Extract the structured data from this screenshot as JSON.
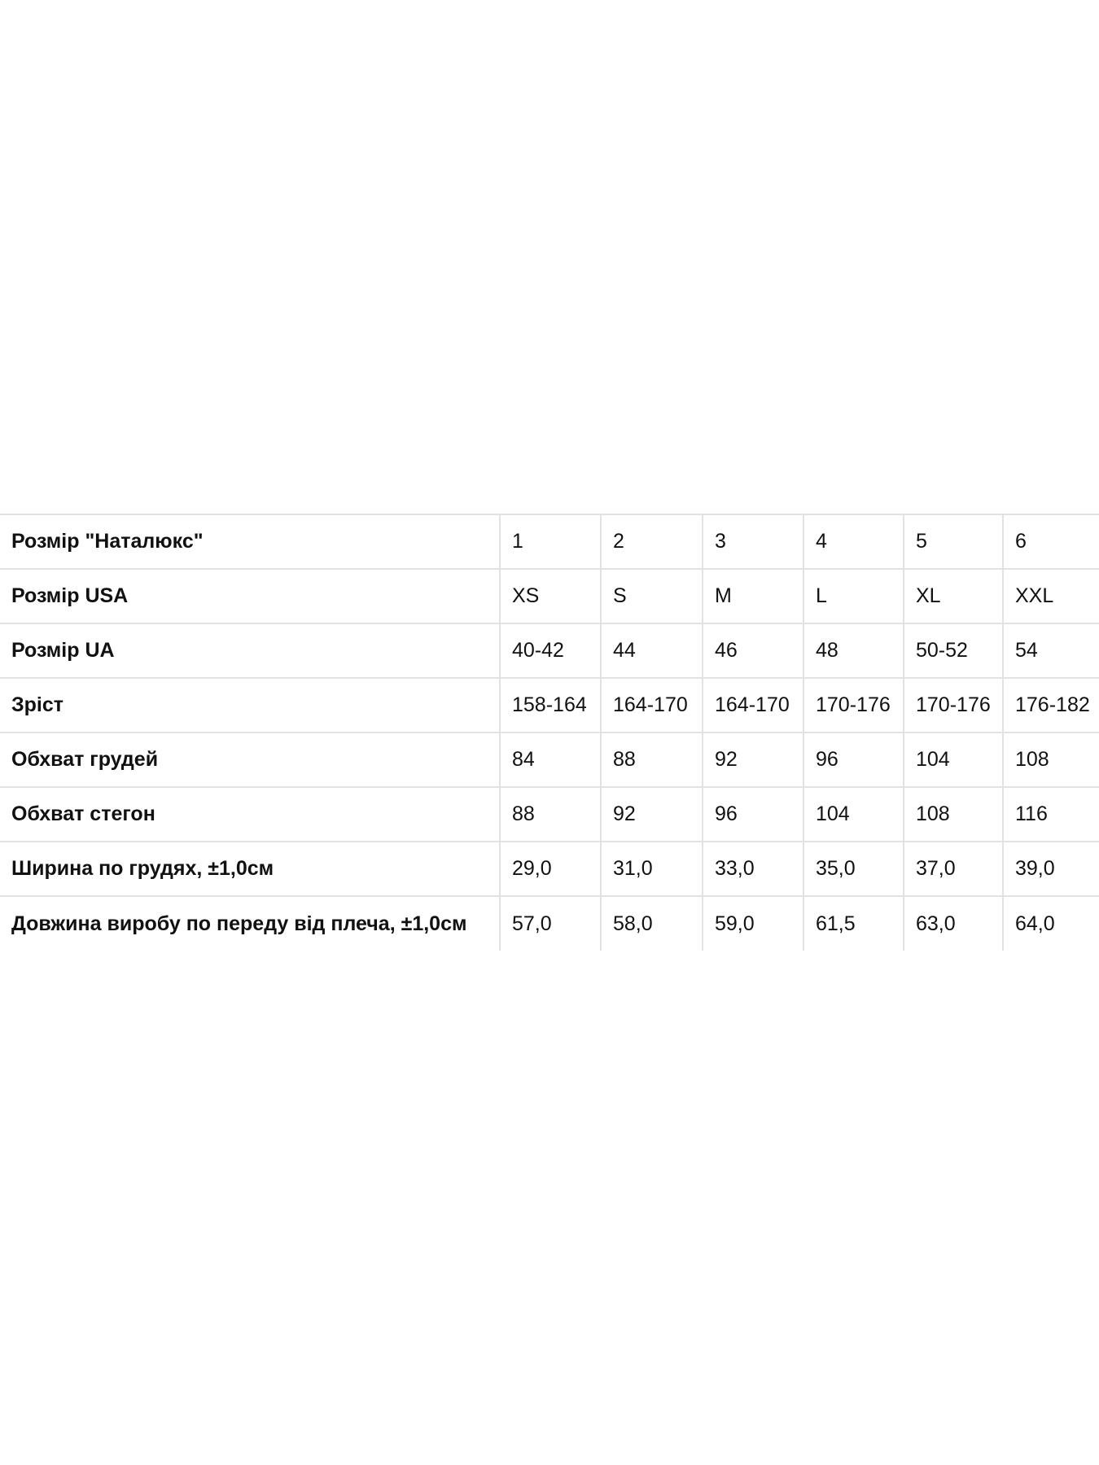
{
  "table": {
    "rows": [
      {
        "label": "Розмір \"Наталюкс\"",
        "values": [
          "1",
          "2",
          "3",
          "4",
          "5",
          "6"
        ]
      },
      {
        "label": "Розмір USA",
        "values": [
          "XS",
          "S",
          "M",
          "L",
          "XL",
          "XXL"
        ]
      },
      {
        "label": "Розмір UA",
        "values": [
          "40-42",
          "44",
          "46",
          "48",
          "50-52",
          "54"
        ]
      },
      {
        "label": "Зріст",
        "values": [
          "158-164",
          "164-170",
          "164-170",
          "170-176",
          "170-176",
          "176-182"
        ]
      },
      {
        "label": "Обхват грудей",
        "values": [
          "84",
          "88",
          "92",
          "96",
          "104",
          "108"
        ]
      },
      {
        "label": "Обхват стегон",
        "values": [
          "88",
          "92",
          "96",
          "104",
          "108",
          "116"
        ]
      },
      {
        "label": "Ширина по грудях, ±1,0см",
        "values": [
          "29,0",
          "31,0",
          "33,0",
          "35,0",
          "37,0",
          "39,0"
        ]
      },
      {
        "label": "Довжина виробу по переду від плеча, ±1,0см",
        "values": [
          "57,0",
          "58,0",
          "59,0",
          "61,5",
          "63,0",
          "64,0"
        ]
      }
    ]
  }
}
